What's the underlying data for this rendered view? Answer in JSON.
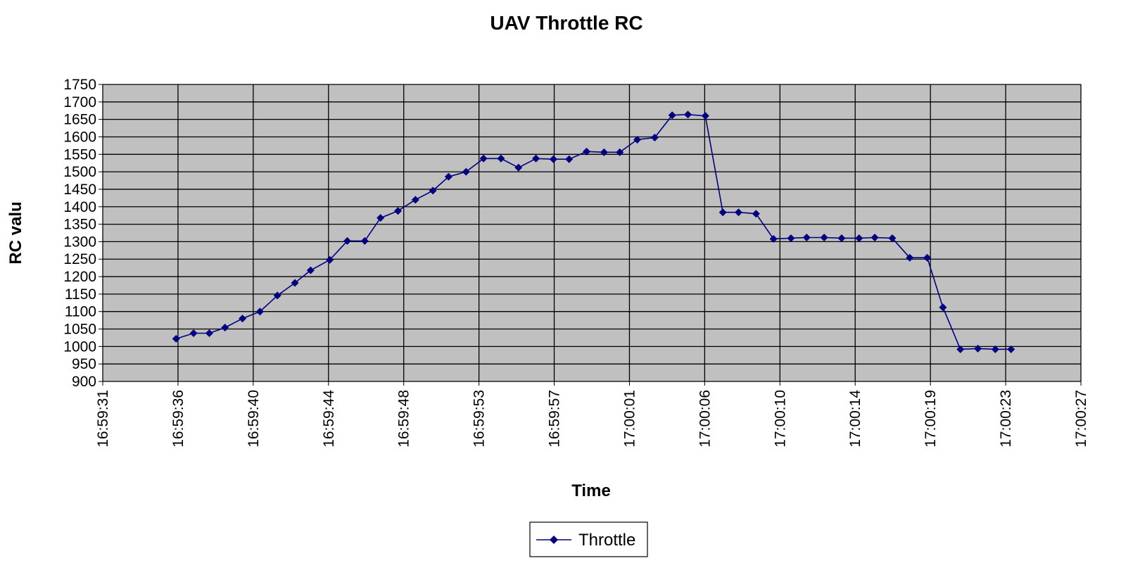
{
  "chart_data": {
    "type": "line",
    "title": "UAV Throttle RC",
    "xlabel": "Time",
    "ylabel": "RC valu",
    "ylim": [
      900,
      1750
    ],
    "y_ticks": [
      900,
      950,
      1000,
      1050,
      1100,
      1150,
      1200,
      1250,
      1300,
      1350,
      1400,
      1450,
      1500,
      1550,
      1600,
      1650,
      1700,
      1750
    ],
    "xlim": [
      "16:59:31",
      "17:00:27"
    ],
    "x_ticks": [
      "16:59:31",
      "16:59:36",
      "16:59:40",
      "16:59:44",
      "16:59:48",
      "16:59:53",
      "16:59:57",
      "17:00:01",
      "17:00:06",
      "17:00:10",
      "17:00:14",
      "17:00:19",
      "17:00:23",
      "17:00:27"
    ],
    "grid": true,
    "legend_position": "bottom-center",
    "colors": {
      "series": "#000080",
      "plot_background": "#c0c0c0",
      "grid": "#000000"
    },
    "series": [
      {
        "name": "Throttle",
        "x": [
          "16:59:35.2",
          "16:59:36.2",
          "16:59:37.1",
          "16:59:38.0",
          "16:59:39.0",
          "16:59:40.0",
          "16:59:41.0",
          "16:59:42.0",
          "16:59:42.9",
          "16:59:44.0",
          "16:59:45.0",
          "16:59:46.0",
          "16:59:46.9",
          "16:59:47.9",
          "16:59:48.9",
          "16:59:49.9",
          "16:59:50.8",
          "16:59:51.8",
          "16:59:52.8",
          "16:59:53.8",
          "16:59:54.8",
          "16:59:55.8",
          "16:59:56.8",
          "16:59:57.7",
          "16:59:58.7",
          "16:59:59.7",
          "17:00:00.6",
          "17:00:01.6",
          "17:00:02.6",
          "17:00:03.6",
          "17:00:04.5",
          "17:00:05.5",
          "17:00:06.5",
          "17:00:07.4",
          "17:00:08.4",
          "17:00:09.4",
          "17:00:10.4",
          "17:00:11.3",
          "17:00:12.3",
          "17:00:13.3",
          "17:00:14.3",
          "17:00:15.2",
          "17:00:16.2",
          "17:00:17.2",
          "17:00:18.2",
          "17:00:19.1",
          "17:00:20.1",
          "17:00:21.1",
          "17:00:22.1",
          "17:00:23.0"
        ],
        "values": [
          1022,
          1038,
          1038,
          1054,
          1080,
          1100,
          1146,
          1182,
          1218,
          1248,
          1302,
          1302,
          1368,
          1388,
          1420,
          1446,
          1486,
          1500,
          1538,
          1538,
          1512,
          1538,
          1536,
          1536,
          1558,
          1556,
          1556,
          1592,
          1598,
          1662,
          1664,
          1660,
          1384,
          1384,
          1380,
          1308,
          1310,
          1312,
          1312,
          1310,
          1310,
          1312,
          1310,
          1254,
          1254,
          1112,
          992,
          994,
          992,
          992
        ]
      }
    ]
  }
}
